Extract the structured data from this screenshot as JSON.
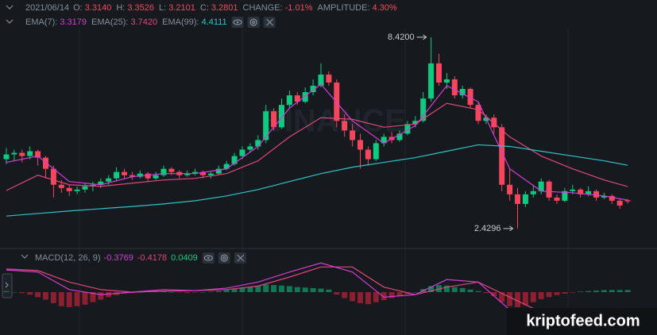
{
  "chart_data": {
    "type": "candlestick",
    "header": {
      "date": "2021/06/14",
      "fields": [
        {
          "label": "O:",
          "value": "3.3140"
        },
        {
          "label": "H:",
          "value": "3.3526"
        },
        {
          "label": "L:",
          "value": "3.2101"
        },
        {
          "label": "C:",
          "value": "3.2801"
        },
        {
          "label": "CHANGE:",
          "value": "-1.01%"
        },
        {
          "label": "AMPLITUDE:",
          "value": "4.30%"
        }
      ]
    },
    "up_color": "#0ecb81",
    "down_color": "#f6465d",
    "ylim": [
      1.88,
      8.69
    ],
    "candles": [
      [
        4.6,
        4.95,
        4.45,
        4.75
      ],
      [
        4.75,
        4.9,
        4.55,
        4.8
      ],
      [
        4.8,
        4.9,
        4.5,
        4.7
      ],
      [
        4.7,
        5.0,
        4.6,
        4.85
      ],
      [
        4.85,
        4.9,
        4.4,
        4.65
      ],
      [
        4.65,
        4.7,
        4.0,
        4.3
      ],
      [
        4.3,
        4.4,
        3.4,
        3.8
      ],
      [
        3.8,
        3.95,
        3.55,
        3.7
      ],
      [
        3.7,
        3.8,
        3.45,
        3.6
      ],
      [
        3.6,
        3.75,
        3.5,
        3.65
      ],
      [
        3.65,
        3.85,
        3.55,
        3.75
      ],
      [
        3.75,
        3.9,
        3.6,
        3.8
      ],
      [
        3.8,
        4.0,
        3.7,
        3.9
      ],
      [
        3.9,
        4.1,
        3.8,
        4.0
      ],
      [
        4.0,
        4.35,
        3.9,
        4.2
      ],
      [
        4.2,
        4.3,
        4.0,
        4.1
      ],
      [
        4.1,
        4.2,
        3.95,
        4.05
      ],
      [
        4.05,
        4.25,
        4.0,
        4.15
      ],
      [
        4.15,
        4.2,
        3.9,
        4.0
      ],
      [
        4.0,
        4.2,
        3.95,
        4.1
      ],
      [
        4.1,
        4.4,
        4.05,
        4.3
      ],
      [
        4.3,
        4.35,
        4.1,
        4.2
      ],
      [
        4.2,
        4.25,
        4.0,
        4.1
      ],
      [
        4.1,
        4.25,
        4.05,
        4.15
      ],
      [
        4.15,
        4.3,
        4.1,
        4.2
      ],
      [
        4.2,
        4.25,
        4.0,
        4.1
      ],
      [
        4.1,
        4.2,
        4.0,
        4.15
      ],
      [
        4.15,
        4.4,
        4.1,
        4.3
      ],
      [
        4.3,
        4.55,
        4.25,
        4.45
      ],
      [
        4.45,
        4.8,
        4.4,
        4.7
      ],
      [
        4.7,
        5.0,
        4.6,
        4.9
      ],
      [
        4.9,
        5.1,
        4.8,
        5.0
      ],
      [
        5.0,
        5.35,
        4.9,
        5.2
      ],
      [
        5.2,
        6.3,
        5.1,
        6.1
      ],
      [
        6.1,
        6.2,
        5.5,
        5.6
      ],
      [
        5.6,
        6.5,
        5.55,
        6.3
      ],
      [
        6.3,
        6.75,
        6.2,
        6.6
      ],
      [
        6.6,
        6.7,
        6.3,
        6.4
      ],
      [
        6.4,
        6.85,
        6.35,
        6.7
      ],
      [
        6.7,
        7.1,
        6.6,
        6.9
      ],
      [
        6.9,
        7.6,
        6.85,
        7.25
      ],
      [
        7.25,
        7.35,
        6.9,
        7.0
      ],
      [
        7.0,
        7.1,
        5.6,
        5.8
      ],
      [
        5.8,
        6.0,
        5.3,
        5.5
      ],
      [
        5.5,
        5.7,
        5.0,
        5.2
      ],
      [
        5.2,
        5.4,
        4.3,
        4.9
      ],
      [
        4.9,
        5.0,
        4.4,
        4.6
      ],
      [
        4.6,
        5.2,
        4.55,
        5.1
      ],
      [
        5.1,
        5.4,
        5.0,
        5.3
      ],
      [
        5.3,
        5.45,
        5.1,
        5.2
      ],
      [
        5.2,
        5.5,
        5.15,
        5.4
      ],
      [
        5.4,
        5.8,
        5.35,
        5.7
      ],
      [
        5.7,
        5.95,
        5.6,
        5.8
      ],
      [
        5.8,
        6.7,
        5.75,
        6.5
      ],
      [
        6.5,
        8.42,
        6.4,
        7.6
      ],
      [
        7.6,
        7.9,
        6.9,
        7.0
      ],
      [
        7.0,
        7.3,
        6.8,
        7.1
      ],
      [
        7.1,
        7.2,
        6.5,
        6.6
      ],
      [
        6.6,
        6.9,
        6.5,
        6.8
      ],
      [
        6.8,
        6.85,
        6.2,
        6.3
      ],
      [
        6.3,
        6.4,
        5.7,
        5.8
      ],
      [
        5.8,
        6.0,
        5.7,
        5.9
      ],
      [
        5.9,
        6.0,
        5.4,
        5.6
      ],
      [
        5.6,
        5.7,
        3.6,
        3.8
      ],
      [
        3.8,
        4.3,
        3.3,
        3.5
      ],
      [
        3.5,
        3.7,
        2.4296,
        3.2
      ],
      [
        3.2,
        3.6,
        3.1,
        3.5
      ],
      [
        3.5,
        3.8,
        3.4,
        3.6
      ],
      [
        3.6,
        4.0,
        3.5,
        3.9
      ],
      [
        3.9,
        3.95,
        3.3,
        3.4
      ],
      [
        3.4,
        3.5,
        3.2,
        3.3
      ],
      [
        3.3,
        3.7,
        3.25,
        3.6
      ],
      [
        3.6,
        3.8,
        3.5,
        3.65
      ],
      [
        3.65,
        3.7,
        3.4,
        3.5
      ],
      [
        3.5,
        3.75,
        3.45,
        3.6
      ],
      [
        3.6,
        3.65,
        3.3,
        3.4
      ],
      [
        3.4,
        3.55,
        3.35,
        3.45
      ],
      [
        3.45,
        3.5,
        3.2,
        3.3
      ],
      [
        3.3,
        3.35,
        3.05,
        3.15
      ],
      [
        3.314,
        3.3526,
        3.2101,
        3.2801
      ]
    ],
    "annotations": [
      {
        "text": "8.4200",
        "candle": 54
      },
      {
        "text": "2.4296",
        "candle": 65
      }
    ],
    "sample_index": [
      0,
      4,
      8,
      12,
      16,
      20,
      24,
      28,
      32,
      36,
      40,
      44,
      48,
      52,
      56,
      60,
      64,
      68,
      72,
      76,
      79
    ],
    "series": [
      {
        "name": "EMA(7):",
        "color": "#d63cd6",
        "legend_value": "3.3179",
        "values": [
          4.5,
          4.7,
          3.9,
          3.8,
          4.05,
          4.15,
          4.15,
          4.3,
          5.0,
          6.2,
          6.95,
          5.8,
          5.1,
          5.65,
          6.9,
          6.4,
          4.3,
          3.6,
          3.55,
          3.45,
          3.3179
        ]
      },
      {
        "name": "EMA(25):",
        "color": "#e0467c",
        "legend_value": "3.7420",
        "values": [
          3.62,
          4.1,
          3.8,
          3.75,
          3.85,
          3.95,
          4.0,
          4.15,
          4.55,
          5.3,
          5.9,
          5.85,
          5.6,
          5.7,
          6.35,
          6.15,
          5.3,
          4.7,
          4.3,
          3.95,
          3.742
        ]
      },
      {
        "name": "EMA(99):",
        "color": "#2fc3c9",
        "legend_value": "4.4111",
        "values": [
          2.82,
          2.9,
          2.98,
          3.05,
          3.12,
          3.2,
          3.3,
          3.45,
          3.65,
          3.9,
          4.15,
          4.35,
          4.5,
          4.65,
          4.85,
          5.05,
          5.0,
          4.85,
          4.7,
          4.55,
          4.4111
        ]
      }
    ],
    "macd": {
      "name": "MACD(12, 26, 9)",
      "ylim": [
        -0.79,
        0.6
      ],
      "macd_color": "#d63cd6",
      "signal_color": "#e0467c",
      "macd_label": "-0.3769",
      "signal_label": "-0.4178",
      "hist_label": "0.0409",
      "macd": [
        0.44,
        0.4,
        0.05,
        -0.05,
        0.0,
        0.05,
        0.03,
        0.08,
        0.2,
        0.4,
        0.58,
        0.4,
        -0.1,
        -0.05,
        0.25,
        0.2,
        -0.35,
        -0.5,
        -0.4,
        -0.38,
        -0.3769
      ],
      "signal": [
        0.46,
        0.43,
        0.2,
        0.05,
        0.0,
        0.02,
        0.03,
        0.05,
        0.12,
        0.3,
        0.5,
        0.5,
        0.1,
        -0.05,
        0.1,
        0.2,
        -0.1,
        -0.4,
        -0.42,
        -0.41,
        -0.4178
      ],
      "hist_up_color": "#0e7a55",
      "hist_down_color": "#8c1f30",
      "hist": [
        0.02,
        0.0,
        -0.02,
        -0.05,
        -0.1,
        -0.15,
        -0.22,
        -0.28,
        -0.3,
        -0.28,
        -0.25,
        -0.2,
        -0.15,
        -0.1,
        -0.06,
        -0.03,
        -0.02,
        0.0,
        0.01,
        0.02,
        0.02,
        0.0,
        -0.01,
        -0.02,
        -0.01,
        0.0,
        0.01,
        0.02,
        0.04,
        0.06,
        0.08,
        0.1,
        0.12,
        0.15,
        0.14,
        0.13,
        0.12,
        0.1,
        0.09,
        0.08,
        0.07,
        0.05,
        -0.05,
        -0.12,
        -0.18,
        -0.22,
        -0.24,
        -0.2,
        -0.16,
        -0.12,
        -0.08,
        -0.04,
        0.0,
        0.06,
        0.12,
        0.14,
        0.13,
        0.1,
        0.08,
        0.05,
        0.02,
        -0.02,
        -0.08,
        -0.2,
        -0.28,
        -0.3,
        -0.26,
        -0.2,
        -0.14,
        -0.1,
        -0.06,
        -0.03,
        -0.01,
        0.01,
        0.02,
        0.03,
        0.04,
        0.04,
        0.04,
        0.0409
      ]
    },
    "watermark": "kriptofeed.com"
  }
}
